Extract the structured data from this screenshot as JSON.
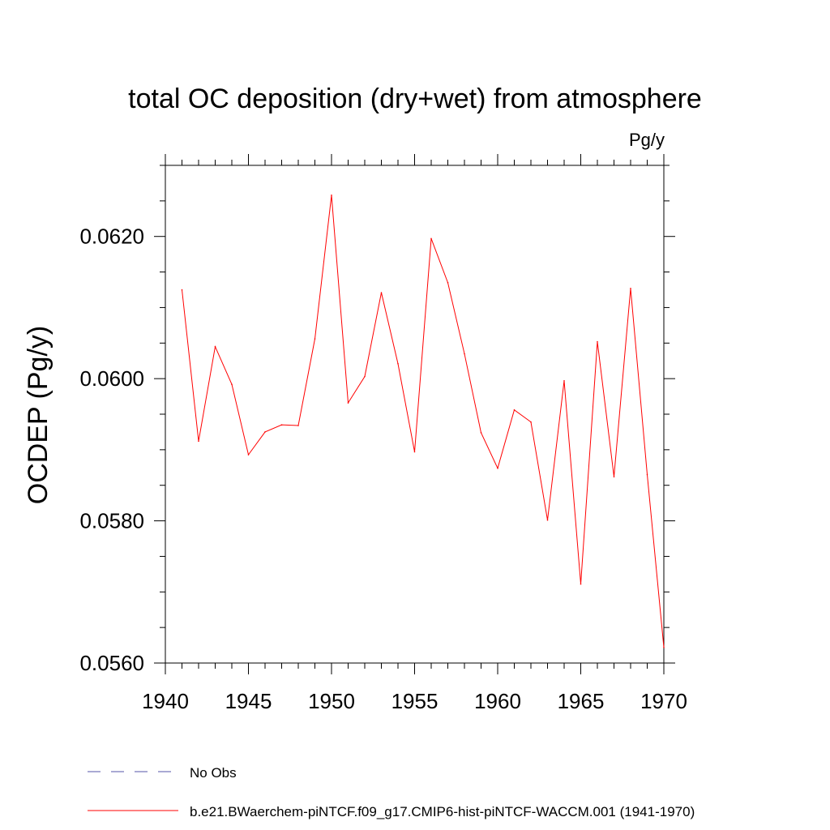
{
  "chart_data": {
    "type": "line",
    "title": "total OC deposition (dry+wet) from atmosphere",
    "units_label": "Pg/y",
    "ylabel": "OCDEP  (Pg/y)",
    "xlim": [
      1940,
      1970
    ],
    "ylim": [
      0.056,
      0.063
    ],
    "x_ticks": [
      1940,
      1945,
      1950,
      1955,
      1960,
      1965,
      1970
    ],
    "x_tick_labels": [
      "1940",
      "1945",
      "1950",
      "1955",
      "1960",
      "1965",
      "1970"
    ],
    "y_ticks": [
      0.056,
      0.058,
      0.06,
      0.062
    ],
    "y_tick_labels": [
      "0.0560",
      "0.0580",
      "0.0600",
      "0.0620"
    ],
    "grid": false,
    "legend_position": "bottom",
    "legend": [
      {
        "label": "No Obs",
        "color": "#5555aa",
        "style": "dashed"
      },
      {
        "label": "b.e21.BWaerchem-piNTCF.f09_g17.CMIP6-hist-piNTCF-WACCM.001 (1941-1970)",
        "color": "#ff0000",
        "style": "solid"
      }
    ],
    "series": [
      {
        "color": "#ff0000",
        "x": [
          1941,
          1942,
          1943,
          1944,
          1945,
          1946,
          1947,
          1948,
          1949,
          1950,
          1951,
          1952,
          1953,
          1954,
          1955,
          1956,
          1957,
          1958,
          1959,
          1960,
          1961,
          1962,
          1963,
          1964,
          1965,
          1966,
          1967,
          1968,
          1969,
          1970
        ],
        "values": [
          0.06125,
          0.05912,
          0.06045,
          0.05992,
          0.05893,
          0.05925,
          0.05935,
          0.05934,
          0.06056,
          0.06258,
          0.05966,
          0.06003,
          0.06121,
          0.06021,
          0.05897,
          0.06197,
          0.06135,
          0.06035,
          0.05924,
          0.05874,
          0.05956,
          0.05939,
          0.05801,
          0.05997,
          0.05711,
          0.06052,
          0.05862,
          0.06127,
          0.05865,
          0.05622
        ]
      }
    ]
  }
}
